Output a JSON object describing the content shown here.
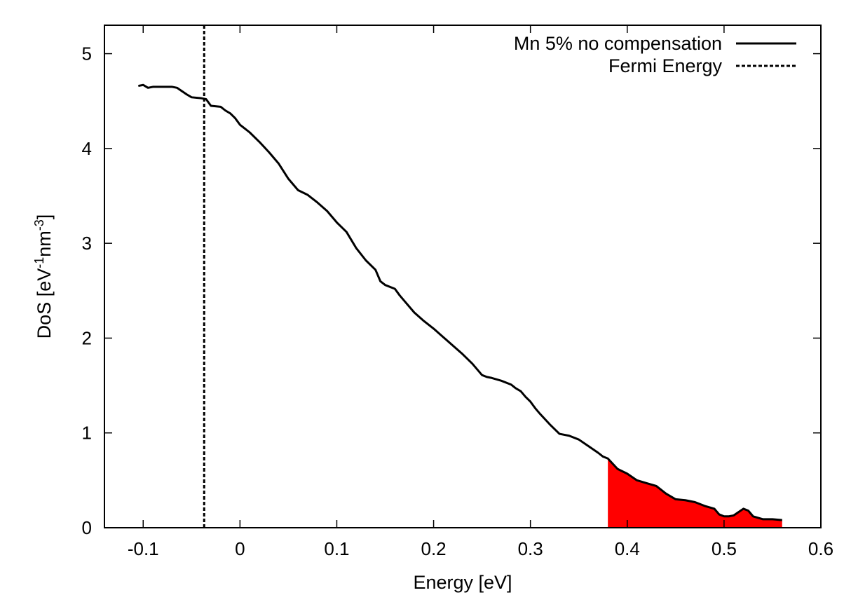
{
  "chart_data": {
    "type": "line",
    "title": "",
    "xlabel": "Energy [eV]",
    "ylabel": "DoS [eV",
    "ylabel_sup1": "-1",
    "ylabel_mid": "nm",
    "ylabel_sup2": "-3",
    "ylabel_end": "]",
    "xlim": [
      -0.14,
      0.6
    ],
    "ylim": [
      0,
      5.3
    ],
    "xticks": [
      -0.1,
      0,
      0.1,
      0.2,
      0.3,
      0.4,
      0.5,
      0.6
    ],
    "xtick_labels": [
      "-0.1",
      "0",
      "0.1",
      "0.2",
      "0.3",
      "0.4",
      "0.5",
      "0.6"
    ],
    "yticks": [
      0,
      1,
      2,
      3,
      4,
      5
    ],
    "ytick_labels": [
      "0",
      "1",
      "2",
      "3",
      "4",
      "5"
    ],
    "legend_position": "top-right",
    "series": [
      {
        "name": "Mn 5% no compensation",
        "style": "solid",
        "color": "#000000",
        "x": [
          -0.105,
          -0.1,
          -0.095,
          -0.09,
          -0.08,
          -0.07,
          -0.065,
          -0.055,
          -0.05,
          -0.04,
          -0.035,
          -0.03,
          -0.02,
          -0.015,
          -0.01,
          -0.005,
          0.0,
          0.005,
          0.01,
          0.02,
          0.03,
          0.04,
          0.05,
          0.055,
          0.06,
          0.07,
          0.08,
          0.09,
          0.095,
          0.1,
          0.11,
          0.12,
          0.13,
          0.14,
          0.145,
          0.15,
          0.16,
          0.165,
          0.17,
          0.18,
          0.19,
          0.2,
          0.21,
          0.22,
          0.23,
          0.24,
          0.25,
          0.255,
          0.26,
          0.27,
          0.28,
          0.285,
          0.29,
          0.295,
          0.3,
          0.305,
          0.31,
          0.32,
          0.33,
          0.34,
          0.35,
          0.36,
          0.37,
          0.375,
          0.38,
          0.39,
          0.4,
          0.41,
          0.42,
          0.43,
          0.44,
          0.45,
          0.46,
          0.465,
          0.47,
          0.48,
          0.49,
          0.495,
          0.5,
          0.505,
          0.51,
          0.52,
          0.525,
          0.53,
          0.54,
          0.55,
          0.56
        ],
        "y": [
          4.66,
          4.67,
          4.64,
          4.65,
          4.65,
          4.65,
          4.64,
          4.57,
          4.54,
          4.53,
          4.52,
          4.45,
          4.44,
          4.4,
          4.37,
          4.32,
          4.25,
          4.21,
          4.17,
          4.07,
          3.96,
          3.84,
          3.68,
          3.62,
          3.56,
          3.51,
          3.43,
          3.34,
          3.28,
          3.22,
          3.12,
          2.95,
          2.82,
          2.72,
          2.6,
          2.56,
          2.52,
          2.45,
          2.39,
          2.27,
          2.18,
          2.1,
          2.01,
          1.92,
          1.83,
          1.73,
          1.61,
          1.59,
          1.58,
          1.55,
          1.51,
          1.47,
          1.44,
          1.38,
          1.33,
          1.26,
          1.2,
          1.09,
          0.99,
          0.97,
          0.93,
          0.86,
          0.79,
          0.75,
          0.73,
          0.62,
          0.57,
          0.5,
          0.47,
          0.44,
          0.36,
          0.3,
          0.29,
          0.28,
          0.27,
          0.23,
          0.2,
          0.14,
          0.12,
          0.12,
          0.13,
          0.2,
          0.18,
          0.12,
          0.09,
          0.09,
          0.08
        ]
      },
      {
        "name": "Fermi Energy",
        "style": "dashed",
        "color": "#000000",
        "x_value": -0.037
      }
    ],
    "shaded_region": {
      "x_from": 0.38,
      "x_to": 0.56,
      "color": "#ff0000"
    }
  }
}
